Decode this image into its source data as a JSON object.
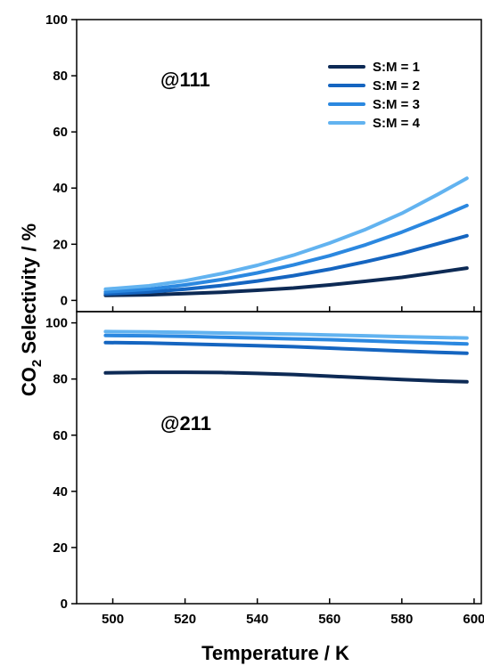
{
  "chart_data": {
    "type": "line",
    "xlabel": "Temperature / K",
    "ylabel_parts": {
      "pre": "CO",
      "sub": "2",
      "post": " Selectivity / %"
    },
    "xlim": [
      490,
      602
    ],
    "xticks": [
      500,
      520,
      540,
      560,
      580,
      600
    ],
    "legend_position": "top-right",
    "series_colors": [
      "#0d2a55",
      "#1565c0",
      "#2b88e0",
      "#62b3f0"
    ],
    "panels": [
      {
        "annotation": "@111",
        "ylim": [
          -4,
          100
        ],
        "yticks": [
          0,
          20,
          40,
          60,
          80,
          100
        ],
        "show_legend": true,
        "series": [
          {
            "name": "S:M = 1",
            "x": [
              498,
              510,
              520,
              530,
              540,
              550,
              560,
              570,
              580,
              590,
              598
            ],
            "values": [
              1.8,
              2.0,
              2.4,
              2.9,
              3.6,
              4.4,
              5.5,
              6.8,
              8.2,
              10.0,
              11.5
            ]
          },
          {
            "name": "S:M = 2",
            "x": [
              498,
              510,
              520,
              530,
              540,
              550,
              560,
              570,
              580,
              590,
              598
            ],
            "values": [
              2.3,
              3.0,
              4.0,
              5.3,
              6.9,
              8.8,
              11.1,
              13.8,
              16.7,
              20.2,
              23.0
            ]
          },
          {
            "name": "S:M = 3",
            "x": [
              498,
              510,
              520,
              530,
              540,
              550,
              560,
              570,
              580,
              590,
              598
            ],
            "values": [
              3.0,
              4.0,
              5.5,
              7.4,
              9.8,
              12.6,
              15.9,
              19.8,
              24.3,
              29.4,
              33.8
            ]
          },
          {
            "name": "S:M = 4",
            "x": [
              498,
              510,
              520,
              530,
              540,
              550,
              560,
              570,
              580,
              590,
              598
            ],
            "values": [
              4.0,
              5.2,
              7.0,
              9.5,
              12.5,
              16.1,
              20.4,
              25.3,
              31.0,
              37.8,
              43.5
            ]
          }
        ]
      },
      {
        "annotation": "@211",
        "ylim": [
          0,
          104
        ],
        "yticks": [
          0,
          20,
          40,
          60,
          80,
          100
        ],
        "show_legend": false,
        "series": [
          {
            "name": "S:M = 1",
            "x": [
              498,
              510,
              520,
              530,
              540,
              550,
              560,
              570,
              580,
              590,
              598
            ],
            "values": [
              82.2,
              82.4,
              82.4,
              82.3,
              82.0,
              81.6,
              81.0,
              80.4,
              79.8,
              79.3,
              79.0
            ]
          },
          {
            "name": "S:M = 2",
            "x": [
              498,
              510,
              520,
              530,
              540,
              550,
              560,
              570,
              580,
              590,
              598
            ],
            "values": [
              93.0,
              92.8,
              92.5,
              92.2,
              91.9,
              91.5,
              91.0,
              90.5,
              90.0,
              89.5,
              89.2
            ]
          },
          {
            "name": "S:M = 3",
            "x": [
              498,
              510,
              520,
              530,
              540,
              550,
              560,
              570,
              580,
              590,
              598
            ],
            "values": [
              95.5,
              95.4,
              95.2,
              94.9,
              94.6,
              94.3,
              94.0,
              93.6,
              93.2,
              92.8,
              92.5
            ]
          },
          {
            "name": "S:M = 4",
            "x": [
              498,
              510,
              520,
              530,
              540,
              550,
              560,
              570,
              580,
              590,
              598
            ],
            "values": [
              96.9,
              96.8,
              96.6,
              96.4,
              96.2,
              96.0,
              95.7,
              95.4,
              95.1,
              94.8,
              94.6
            ]
          }
        ]
      }
    ]
  }
}
